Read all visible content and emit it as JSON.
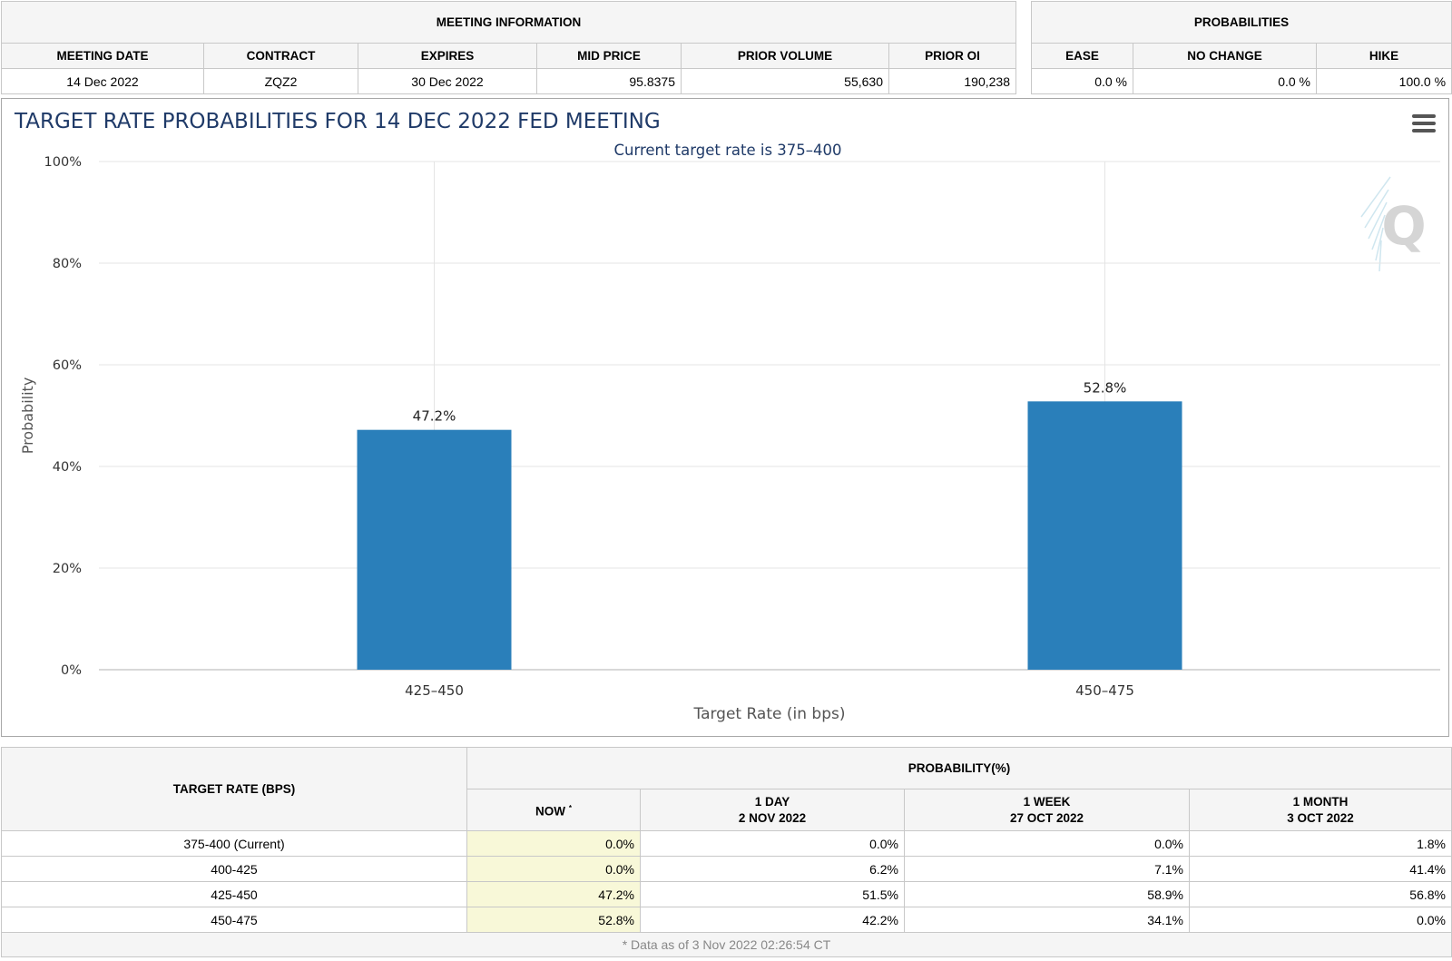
{
  "meeting_info": {
    "title": "MEETING INFORMATION",
    "headers": [
      "MEETING DATE",
      "CONTRACT",
      "EXPIRES",
      "MID PRICE",
      "PRIOR VOLUME",
      "PRIOR OI"
    ],
    "values": [
      "14 Dec 2022",
      "ZQZ2",
      "30 Dec 2022",
      "95.8375",
      "55,630",
      "190,238"
    ]
  },
  "probabilities": {
    "title": "PROBABILITIES",
    "headers": [
      "EASE",
      "NO CHANGE",
      "HIKE"
    ],
    "values": [
      "0.0 %",
      "0.0 %",
      "100.0 %"
    ]
  },
  "menu_icon": "hamburger-menu-icon",
  "chart_data": {
    "type": "bar",
    "title": "TARGET RATE PROBABILITIES FOR 14 DEC 2022 FED MEETING",
    "subtitle": "Current target rate is 375–400",
    "xlabel": "Target Rate (in bps)",
    "ylabel": "Probability",
    "categories": [
      "425–450",
      "450–475"
    ],
    "values": [
      47.2,
      52.8
    ],
    "value_labels": [
      "47.2%",
      "52.8%"
    ],
    "ylim": [
      0,
      100
    ],
    "yticks": [
      "0%",
      "20%",
      "40%",
      "60%",
      "80%",
      "100%"
    ],
    "grid": true,
    "legend": "none",
    "bar_color": "#2a7fba",
    "title_color": "#1f3a68",
    "watermark": "Q"
  },
  "history": {
    "rate_header": "TARGET RATE (BPS)",
    "prob_header": "PROBABILITY(%)",
    "columns": [
      {
        "line1": "NOW",
        "line2": "",
        "mark": "*"
      },
      {
        "line1": "1 DAY",
        "line2": "2 NOV 2022",
        "mark": ""
      },
      {
        "line1": "1 WEEK",
        "line2": "27 OCT 2022",
        "mark": ""
      },
      {
        "line1": "1 MONTH",
        "line2": "3 OCT 2022",
        "mark": ""
      }
    ],
    "rows": [
      {
        "rate": "375-400 (Current)",
        "values": [
          "0.0%",
          "0.0%",
          "0.0%",
          "1.8%"
        ]
      },
      {
        "rate": "400-425",
        "values": [
          "0.0%",
          "6.2%",
          "7.1%",
          "41.4%"
        ]
      },
      {
        "rate": "425-450",
        "values": [
          "47.2%",
          "51.5%",
          "58.9%",
          "56.8%"
        ]
      },
      {
        "rate": "450-475",
        "values": [
          "52.8%",
          "42.2%",
          "34.1%",
          "0.0%"
        ]
      }
    ],
    "footnote": "* Data as of 3 Nov 2022 02:26:54 CT",
    "now_highlight_color": "#f8f8d8"
  }
}
